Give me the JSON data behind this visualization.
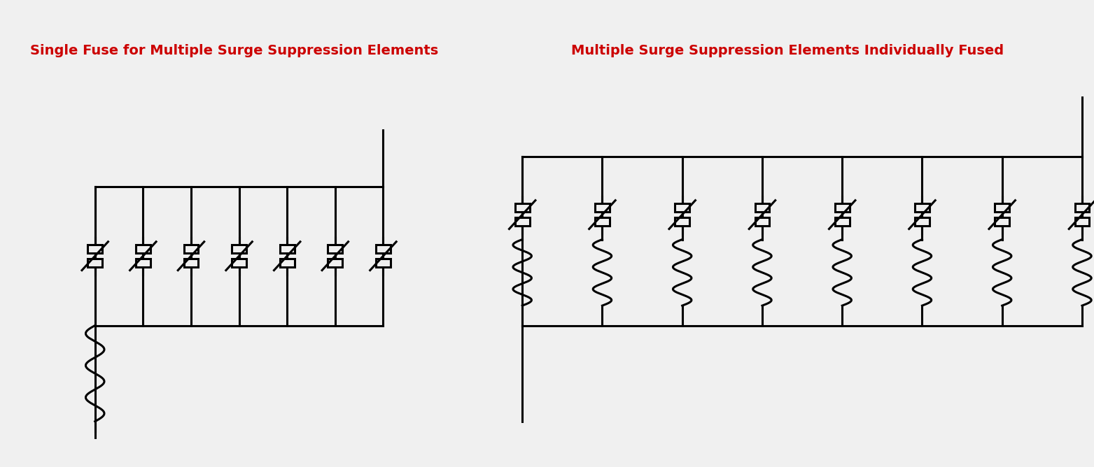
{
  "bg_color": "#f0f0f0",
  "line_color": "#000000",
  "text_color": "#cc0000",
  "title_left": "Single Fuse for Multiple Surge Suppression Elements",
  "title_right": "Multiple Surge Suppression Elements Individually Fused",
  "lw": 2.2,
  "lw_thin": 1.8
}
